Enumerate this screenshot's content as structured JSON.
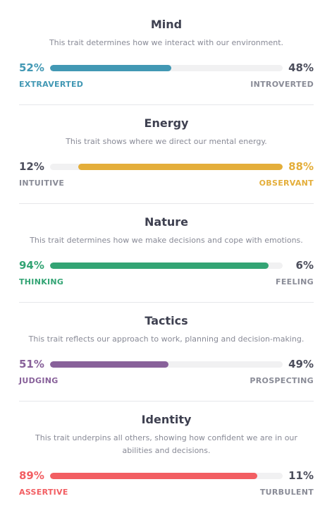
{
  "traits": [
    {
      "title": "Mind",
      "description": "This trait determines how we interact with our environment.",
      "left_percent": "52%",
      "right_percent": "48%",
      "left_label": "EXTRAVERTED",
      "right_label": "INTROVERTED",
      "dominant": "left",
      "fill_fraction": 0.52,
      "color": "#4298b4"
    },
    {
      "title": "Energy",
      "description": "This trait shows where we direct our mental energy.",
      "left_percent": "12%",
      "right_percent": "88%",
      "left_label": "INTUITIVE",
      "right_label": "OBSERVANT",
      "dominant": "right",
      "fill_fraction": 0.88,
      "color": "#e4ae3a"
    },
    {
      "title": "Nature",
      "description": "This trait determines how we make decisions and cope with emotions.",
      "left_percent": "94%",
      "right_percent": "6%",
      "left_label": "THINKING",
      "right_label": "FEELING",
      "dominant": "left",
      "fill_fraction": 0.94,
      "color": "#33a474"
    },
    {
      "title": "Tactics",
      "description": "This trait reflects our approach to work, planning and decision-making.",
      "left_percent": "51%",
      "right_percent": "49%",
      "left_label": "JUDGING",
      "right_label": "PROSPECTING",
      "dominant": "left",
      "fill_fraction": 0.51,
      "color": "#88619a"
    },
    {
      "title": "Identity",
      "description": "This trait underpins all others, showing how confident we are in our abilities and decisions.",
      "left_percent": "89%",
      "right_percent": "11%",
      "left_label": "ASSERTIVE",
      "right_label": "TURBULENT",
      "dominant": "left",
      "fill_fraction": 0.89,
      "color": "#f25e62"
    }
  ]
}
